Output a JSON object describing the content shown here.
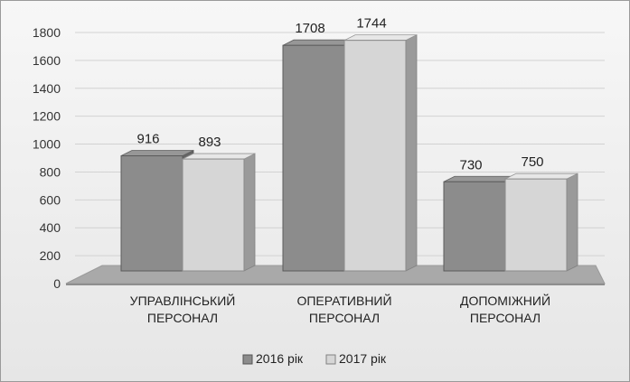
{
  "chart_data": {
    "type": "bar",
    "style": "3d-clustered-column",
    "categories": [
      [
        "УПРАВЛІНСЬКИЙ",
        "ПЕРСОНАЛ"
      ],
      [
        "ОПЕРАТИВНИЙ",
        "ПЕРСОНАЛ"
      ],
      [
        "ДОПОМІЖНИЙ",
        "ПЕРСОНАЛ"
      ]
    ],
    "series": [
      {
        "name": "2016 рік",
        "values": [
          916,
          1708,
          730
        ],
        "color": "#8c8c8c"
      },
      {
        "name": "2017 рік",
        "values": [
          893,
          1744,
          750
        ],
        "color": "#d6d6d6"
      }
    ],
    "y_ticks": [
      0,
      200,
      400,
      600,
      800,
      1000,
      1200,
      1400,
      1600,
      1800
    ],
    "ylim": [
      0,
      1800
    ],
    "grid": true,
    "legend": "bottom",
    "title": "",
    "xlabel": "",
    "ylabel": ""
  }
}
